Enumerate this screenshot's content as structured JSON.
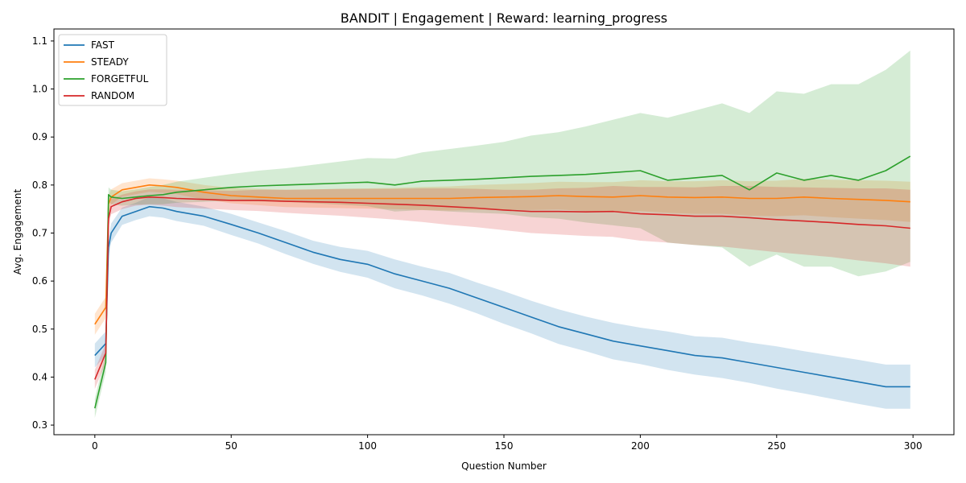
{
  "chart_data": {
    "type": "line",
    "title": "BANDIT | Engagement | Reward: learning_progress",
    "xlabel": "Question Number",
    "ylabel": "Avg. Engagement",
    "xlim": [
      -15,
      315
    ],
    "ylim": [
      0.28,
      1.125
    ],
    "xticks": [
      0,
      50,
      100,
      150,
      200,
      250,
      300
    ],
    "yticks": [
      0.3,
      0.4,
      0.5,
      0.6,
      0.7,
      0.8,
      0.9,
      1.0,
      1.1
    ],
    "grid": false,
    "legend_position": "upper-left",
    "series": [
      {
        "name": "FAST",
        "color": "#1f77b4",
        "x": [
          0,
          4,
          5,
          6,
          10,
          15,
          20,
          25,
          30,
          40,
          50,
          60,
          70,
          80,
          90,
          100,
          110,
          120,
          130,
          140,
          150,
          160,
          170,
          180,
          190,
          200,
          210,
          220,
          230,
          240,
          250,
          260,
          270,
          280,
          290,
          299
        ],
        "y": [
          0.445,
          0.47,
          0.67,
          0.7,
          0.735,
          0.745,
          0.755,
          0.752,
          0.745,
          0.735,
          0.718,
          0.7,
          0.68,
          0.66,
          0.645,
          0.635,
          0.615,
          0.6,
          0.585,
          0.565,
          0.545,
          0.525,
          0.505,
          0.49,
          0.475,
          0.465,
          0.455,
          0.445,
          0.44,
          0.43,
          0.42,
          0.41,
          0.4,
          0.39,
          0.38,
          0.38
        ],
        "band": [
          0.025,
          0.025,
          0.02,
          0.02,
          0.018,
          0.018,
          0.02,
          0.02,
          0.02,
          0.02,
          0.022,
          0.022,
          0.024,
          0.024,
          0.026,
          0.028,
          0.03,
          0.03,
          0.032,
          0.032,
          0.034,
          0.034,
          0.036,
          0.036,
          0.038,
          0.038,
          0.04,
          0.04,
          0.042,
          0.042,
          0.044,
          0.044,
          0.045,
          0.046,
          0.046,
          0.046
        ]
      },
      {
        "name": "STEADY",
        "color": "#ff7f0e",
        "x": [
          0,
          4,
          5,
          6,
          10,
          15,
          20,
          25,
          30,
          40,
          50,
          60,
          70,
          80,
          90,
          100,
          110,
          120,
          130,
          140,
          150,
          160,
          170,
          180,
          190,
          200,
          210,
          220,
          230,
          240,
          250,
          260,
          270,
          280,
          290,
          299
        ],
        "y": [
          0.51,
          0.545,
          0.76,
          0.775,
          0.79,
          0.795,
          0.8,
          0.798,
          0.795,
          0.785,
          0.778,
          0.775,
          0.772,
          0.772,
          0.772,
          0.772,
          0.772,
          0.772,
          0.772,
          0.774,
          0.775,
          0.776,
          0.778,
          0.776,
          0.775,
          0.778,
          0.775,
          0.774,
          0.775,
          0.772,
          0.772,
          0.775,
          0.772,
          0.77,
          0.768,
          0.765
        ],
        "band": [
          0.022,
          0.022,
          0.018,
          0.016,
          0.014,
          0.014,
          0.014,
          0.014,
          0.014,
          0.015,
          0.016,
          0.017,
          0.018,
          0.019,
          0.02,
          0.021,
          0.022,
          0.024,
          0.025,
          0.026,
          0.027,
          0.028,
          0.029,
          0.03,
          0.031,
          0.032,
          0.033,
          0.034,
          0.035,
          0.036,
          0.037,
          0.038,
          0.039,
          0.04,
          0.041,
          0.042
        ]
      },
      {
        "name": "FORGETFUL",
        "color": "#2ca02c",
        "x": [
          0,
          4,
          5,
          6,
          10,
          15,
          20,
          25,
          30,
          40,
          50,
          60,
          70,
          80,
          90,
          100,
          110,
          120,
          130,
          140,
          150,
          160,
          170,
          180,
          190,
          200,
          210,
          220,
          230,
          240,
          250,
          260,
          270,
          280,
          290,
          299
        ],
        "y": [
          0.335,
          0.43,
          0.78,
          0.775,
          0.772,
          0.775,
          0.778,
          0.78,
          0.785,
          0.79,
          0.795,
          0.798,
          0.8,
          0.802,
          0.804,
          0.806,
          0.8,
          0.808,
          0.81,
          0.812,
          0.815,
          0.818,
          0.82,
          0.822,
          0.826,
          0.83,
          0.81,
          0.815,
          0.82,
          0.79,
          0.825,
          0.81,
          0.82,
          0.81,
          0.83,
          0.86
        ],
        "band": [
          0.02,
          0.02,
          0.015,
          0.015,
          0.015,
          0.016,
          0.018,
          0.02,
          0.022,
          0.025,
          0.028,
          0.032,
          0.035,
          0.04,
          0.045,
          0.05,
          0.055,
          0.06,
          0.065,
          0.07,
          0.075,
          0.085,
          0.09,
          0.1,
          0.11,
          0.12,
          0.13,
          0.14,
          0.15,
          0.16,
          0.17,
          0.18,
          0.19,
          0.2,
          0.21,
          0.22
        ]
      },
      {
        "name": "RANDOM",
        "color": "#d62728",
        "x": [
          0,
          4,
          5,
          6,
          10,
          15,
          20,
          25,
          30,
          40,
          50,
          60,
          70,
          80,
          90,
          100,
          110,
          120,
          130,
          140,
          150,
          160,
          170,
          180,
          190,
          200,
          210,
          220,
          230,
          240,
          250,
          260,
          270,
          280,
          290,
          299
        ],
        "y": [
          0.395,
          0.45,
          0.73,
          0.755,
          0.765,
          0.772,
          0.775,
          0.774,
          0.772,
          0.77,
          0.768,
          0.768,
          0.766,
          0.765,
          0.764,
          0.762,
          0.76,
          0.758,
          0.755,
          0.752,
          0.748,
          0.745,
          0.745,
          0.744,
          0.745,
          0.74,
          0.738,
          0.735,
          0.735,
          0.732,
          0.728,
          0.725,
          0.722,
          0.718,
          0.715,
          0.71
        ],
        "band": [
          0.02,
          0.02,
          0.018,
          0.016,
          0.015,
          0.015,
          0.016,
          0.017,
          0.018,
          0.019,
          0.02,
          0.022,
          0.024,
          0.026,
          0.028,
          0.03,
          0.032,
          0.035,
          0.038,
          0.04,
          0.042,
          0.045,
          0.048,
          0.05,
          0.053,
          0.056,
          0.058,
          0.06,
          0.063,
          0.066,
          0.068,
          0.07,
          0.072,
          0.075,
          0.078,
          0.08
        ]
      }
    ]
  }
}
